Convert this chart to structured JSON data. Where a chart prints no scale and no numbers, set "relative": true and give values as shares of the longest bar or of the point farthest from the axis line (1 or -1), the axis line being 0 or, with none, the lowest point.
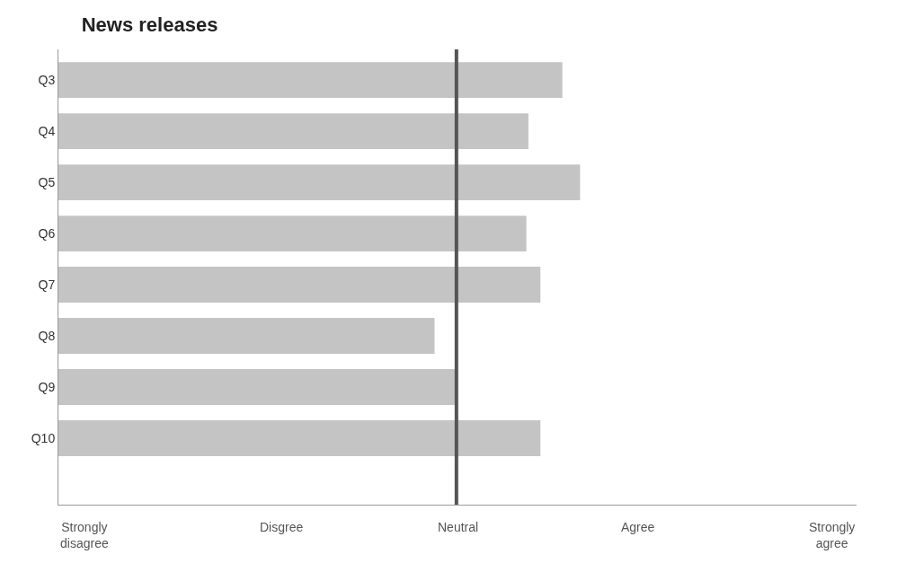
{
  "chart_data": {
    "type": "bar",
    "orientation": "horizontal",
    "title": "News releases",
    "relative": true,
    "categories": [
      "Q3",
      "Q4",
      "Q5",
      "Q6",
      "Q7",
      "Q8",
      "Q9",
      "Q10"
    ],
    "values": [
      0.966,
      0.901,
      1,
      0.897,
      0.924,
      0.721,
      0.763,
      0.924
    ],
    "color": "#c4c4c4",
    "annotations": [
      "Strongly\ndisagree",
      "Disgree",
      "Neutral",
      "Agree",
      "Strongly\nagree"
    ],
    "ref_lines": [
      {
        "axis": "x",
        "value": 0.763,
        "color": "#555555"
      }
    ],
    "legend": false
  }
}
